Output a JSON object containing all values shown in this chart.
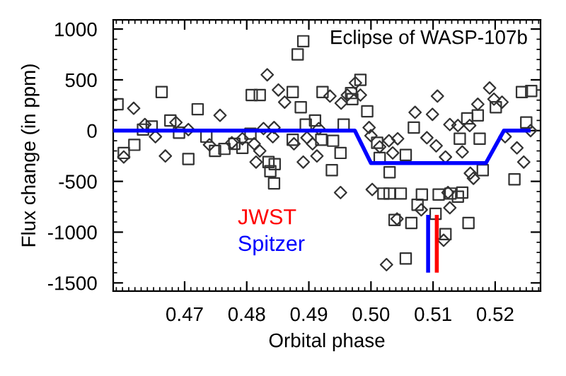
{
  "chart_data": {
    "type": "scatter",
    "title": "Eclipse of WASP-107b",
    "xlabel": "Orbital phase",
    "ylabel": "Flux change (in ppm)",
    "xlim": [
      0.4585,
      0.5273
    ],
    "xticks": [
      0.47,
      0.48,
      0.49,
      {
        "value": 0.5,
        "label": "0.50"
      },
      0.51,
      0.52
    ],
    "ylim": [
      -1580,
      1090
    ],
    "yticks": [
      -1500,
      -1000,
      -500,
      0,
      500,
      1000
    ],
    "grid": false,
    "legend": "bottom",
    "series": [
      {
        "marker": "square",
        "color": "#333333",
        "x": [
          0.4592,
          0.4602,
          0.4619,
          0.4633,
          0.4647,
          0.4663,
          0.4677,
          0.4691,
          0.4706,
          0.4721,
          0.4735,
          0.4749,
          0.4764,
          0.478,
          0.4793,
          0.4808,
          0.4821,
          0.4806,
          0.4835,
          0.4845,
          0.4844,
          0.4838,
          0.4891,
          0.4882,
          0.4874,
          0.4887,
          0.4895,
          0.491,
          0.492,
          0.4939,
          0.4956,
          0.4922,
          0.4968,
          0.4983,
          0.497,
          0.4994,
          0.4874,
          0.4937,
          0.4951,
          0.501,
          0.5014,
          0.503,
          0.5056,
          0.5069,
          0.5155,
          0.5172,
          0.5143,
          0.5175,
          0.518,
          0.5201,
          0.5243,
          0.5258,
          0.525,
          0.5231,
          0.502,
          0.503,
          0.5048,
          0.5082,
          0.5109,
          0.5128,
          0.5147,
          0.5075,
          0.5104,
          0.5038,
          0.5065,
          0.512,
          0.5157,
          0.5056,
          0.514
        ],
        "values": [
          260,
          -220,
          -140,
          10,
          40,
          380,
          100,
          -20,
          -280,
          210,
          -60,
          -200,
          -180,
          -130,
          -170,
          350,
          350,
          -30,
          -310,
          -330,
          -520,
          -400,
          880,
          750,
          380,
          230,
          60,
          100,
          -90,
          -100,
          60,
          380,
          370,
          500,
          310,
          190,
          -90,
          -390,
          -220,
          -120,
          -270,
          -410,
          -240,
          30,
          120,
          150,
          -80,
          -80,
          -390,
          230,
          380,
          390,
          80,
          -480,
          -620,
          -620,
          -620,
          -630,
          -630,
          -620,
          -610,
          -730,
          -820,
          -880,
          -910,
          -1020,
          -910,
          -1260,
          -650
        ]
      },
      {
        "marker": "diamond",
        "color": "#333333",
        "x": [
          0.4602,
          0.4618,
          0.4636,
          0.4653,
          0.4669,
          0.4686,
          0.4706,
          0.474,
          0.4757,
          0.4776,
          0.4793,
          0.4812,
          0.4815,
          0.4827,
          0.4833,
          0.4844,
          0.4851,
          0.4821,
          0.4842,
          0.4861,
          0.4876,
          0.4891,
          0.4897,
          0.4906,
          0.4913,
          0.4916,
          0.4934,
          0.4952,
          0.4962,
          0.4975,
          0.4983,
          0.4997,
          0.5,
          0.5014,
          0.5029,
          0.5043,
          0.5035,
          0.5071,
          0.509,
          0.5099,
          0.5107,
          0.5105,
          0.512,
          0.5127,
          0.514,
          0.5147,
          0.5159,
          0.516,
          0.5165,
          0.5172,
          0.5191,
          0.5198,
          0.5211,
          0.5216,
          0.5235,
          0.5246,
          0.5257,
          0.4951,
          0.5002,
          0.5124,
          0.5081,
          0.5127,
          0.5042,
          0.5117,
          0.5025
        ],
        "values": [
          -260,
          220,
          60,
          -60,
          -250,
          80,
          10,
          -140,
          150,
          -120,
          -80,
          -130,
          -310,
          20,
          550,
          30,
          400,
          -200,
          -60,
          280,
          -130,
          -310,
          -70,
          -130,
          -250,
          20,
          340,
          270,
          350,
          470,
          350,
          30,
          -50,
          -160,
          -100,
          -80,
          -220,
          180,
          -70,
          160,
          340,
          -150,
          -260,
          60,
          50,
          -210,
          50,
          -420,
          -470,
          260,
          420,
          310,
          280,
          -60,
          -170,
          -310,
          0,
          -610,
          -580,
          -610,
          -780,
          -760,
          -870,
          -1080,
          -1320
        ]
      },
      {
        "type": "line",
        "color": "#0000ff",
        "x": [
          0.4585,
          0.4974,
          0.5,
          0.5185,
          0.5214,
          0.5254
        ],
        "values": [
          0,
          0,
          -320,
          -320,
          0,
          0
        ]
      },
      {
        "type": "line",
        "name": "JWST",
        "color": "#ff0000",
        "x": [
          0.5106,
          0.5106
        ],
        "values": [
          -850,
          -1380
        ]
      },
      {
        "type": "line",
        "name": "Spitzer",
        "color": "#0000ff",
        "x": [
          0.5092,
          0.5092
        ],
        "values": [
          -850,
          -1380
        ]
      }
    ]
  }
}
